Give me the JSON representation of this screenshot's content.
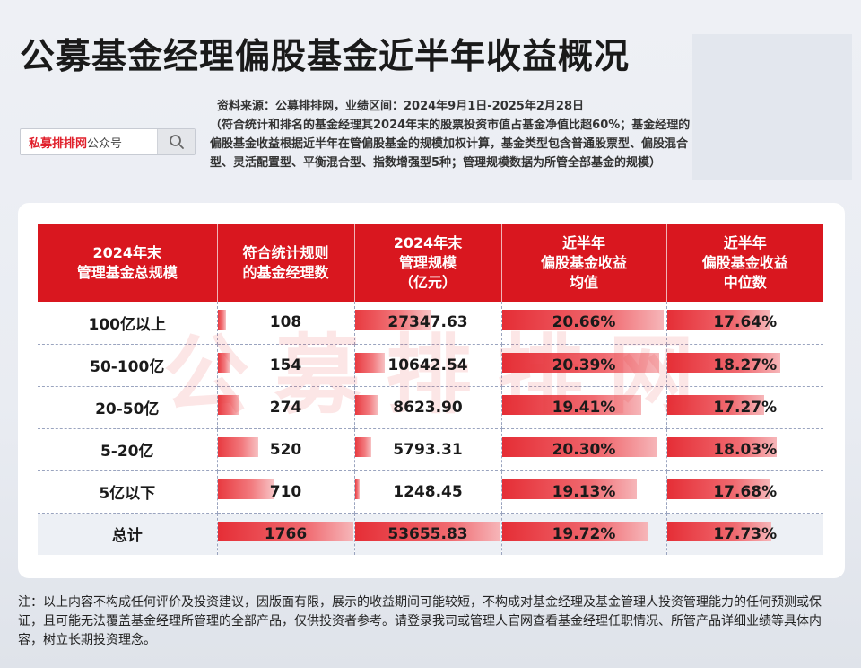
{
  "title": "公募基金经理偏股基金近半年收益概况",
  "source": "资料来源：公募排排网，业绩区间：2024年9月1日-2025年2月28日",
  "description": "（符合统计和排名的基金经理其2024年末的股票投资市值占基金净值比超60%；基金经理的偏股基金收益根据近半年在管偏股基金的规模加权计算，基金类型包含普通股票型、偏股混合型、灵活配置型、平衡混合型、指数增强型5种；管理规模数据为所管全部基金的规模）",
  "search": {
    "brand": "私募排排网",
    "suffix": "公众号",
    "icon": "search-icon"
  },
  "watermark": "公募排排网",
  "table": {
    "headers": [
      "2024年末\n管理基金总规模",
      "符合统计规则\n的基金经理数",
      "2024年末\n管理规模\n（亿元）",
      "近半年\n偏股基金收益\n均值",
      "近半年\n偏股基金收益\n中位数"
    ],
    "rows": [
      {
        "scale": "100亿以上",
        "count": "108",
        "aum": "27347.63",
        "mean": "20.66%",
        "median": "17.64%"
      },
      {
        "scale": "50-100亿",
        "count": "154",
        "aum": "10642.54",
        "mean": "20.39%",
        "median": "18.27%"
      },
      {
        "scale": "20-50亿",
        "count": "274",
        "aum": "8623.90",
        "mean": "19.41%",
        "median": "17.27%"
      },
      {
        "scale": "5-20亿",
        "count": "520",
        "aum": "5793.31",
        "mean": "20.30%",
        "median": "18.03%"
      },
      {
        "scale": "5亿以下",
        "count": "710",
        "aum": "1248.45",
        "mean": "19.13%",
        "median": "17.68%"
      }
    ],
    "total": {
      "scale": "总计",
      "count": "1766",
      "aum": "53655.83",
      "mean": "19.72%",
      "median": "17.73%"
    },
    "bar_color": "#e52e36",
    "header_color": "#d9171f"
  },
  "footnote": "注：以上内容不构成任何评价及投资建议，因版面有限，展示的收益期间可能较短，不构成对基金经理及基金管理人投资管理能力的任何预测或保证，且可能无法覆盖基金经理所管理的全部产品，仅供投资者参考。请登录我司或管理人官网查看基金经理任职情况、所管产品详细业绩等具体内容，树立长期投资理念。"
}
